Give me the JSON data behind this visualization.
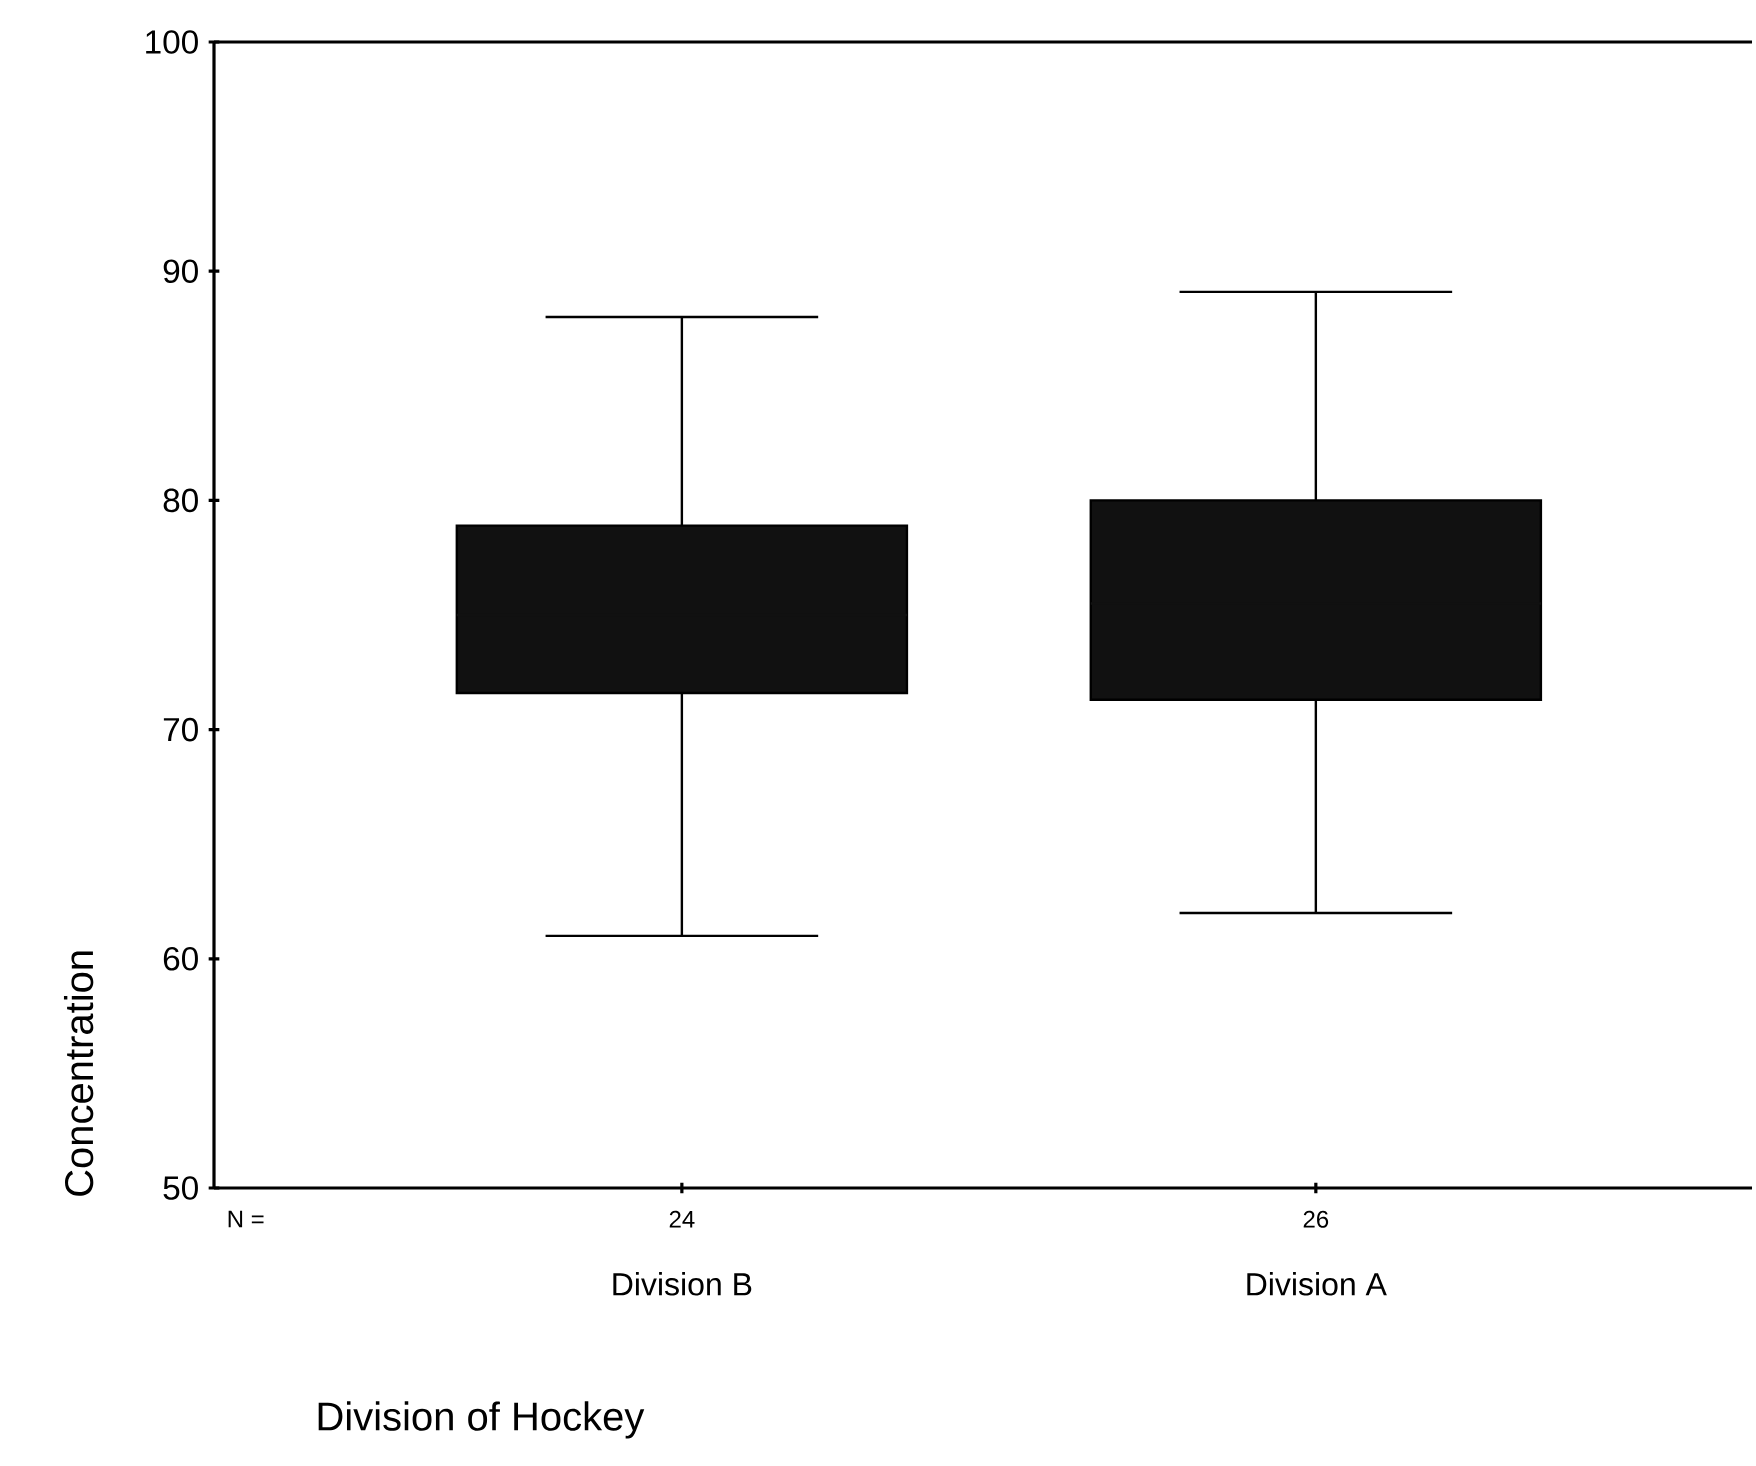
{
  "chart_data": {
    "type": "box",
    "xlabel": "Division of Hockey",
    "ylabel": "Concentration",
    "categories": [
      "Division B",
      "Division A"
    ],
    "boxes": [
      {
        "low": 61.0,
        "q1": 71.6,
        "median": 75.0,
        "q3": 78.9,
        "high": 88.0
      },
      {
        "low": 62.0,
        "q1": 71.3,
        "median": 75.5,
        "q3": 80.0,
        "high": 89.1
      }
    ],
    "color": "#111111",
    "ylim": [
      50,
      100
    ],
    "yticks": [
      50,
      60,
      70,
      80,
      90,
      100
    ],
    "annotations": [
      "N =",
      "24",
      "26"
    ]
  }
}
